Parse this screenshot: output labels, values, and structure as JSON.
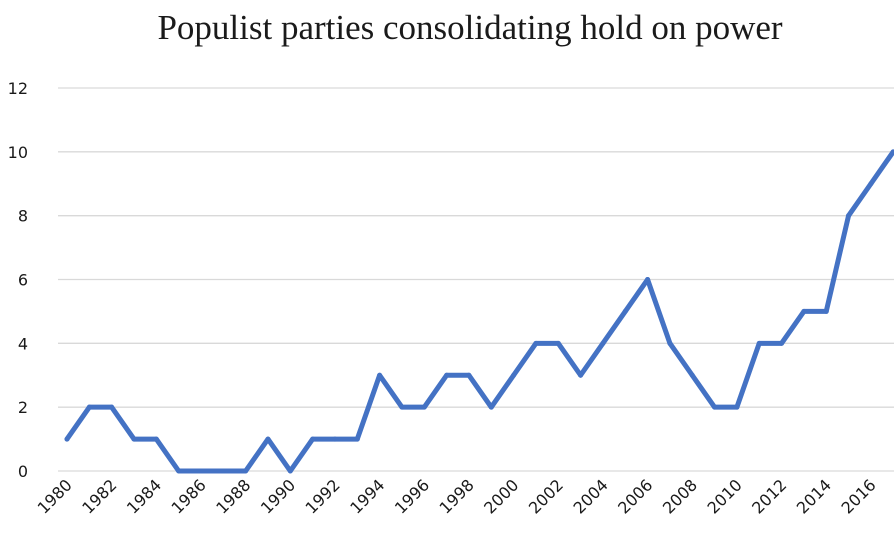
{
  "chart_data": {
    "type": "line",
    "title": "Populist parties consolidating hold on power",
    "xlabel": "",
    "ylabel": "",
    "x": [
      1980,
      1981,
      1982,
      1983,
      1984,
      1985,
      1986,
      1987,
      1988,
      1989,
      1990,
      1991,
      1992,
      1993,
      1994,
      1995,
      1996,
      1997,
      1998,
      1999,
      2000,
      2001,
      2002,
      2003,
      2004,
      2005,
      2006,
      2007,
      2008,
      2009,
      2010,
      2011,
      2012,
      2013,
      2014,
      2015,
      2016,
      2017
    ],
    "series": [
      {
        "name": "",
        "color": "#4472c4",
        "values": [
          1,
          2,
          2,
          1,
          1,
          0,
          0,
          0,
          0,
          1,
          0,
          1,
          1,
          1,
          3,
          2,
          2,
          3,
          3,
          2,
          3,
          4,
          4,
          3,
          4,
          5,
          6,
          4,
          3,
          2,
          2,
          4,
          4,
          5,
          5,
          8,
          9,
          10
        ]
      }
    ],
    "x_tick_labels": [
      "1980",
      "1982",
      "1984",
      "1986",
      "1988",
      "1990",
      "1992",
      "1994",
      "1996",
      "1998",
      "2000",
      "2002",
      "2004",
      "2006",
      "2008",
      "2010",
      "2012",
      "2014",
      "2016"
    ],
    "y_tick_labels": [
      "0",
      "2",
      "4",
      "6",
      "8",
      "10",
      "12"
    ],
    "ylim": [
      0,
      12
    ],
    "grid": true,
    "legend": "none"
  }
}
